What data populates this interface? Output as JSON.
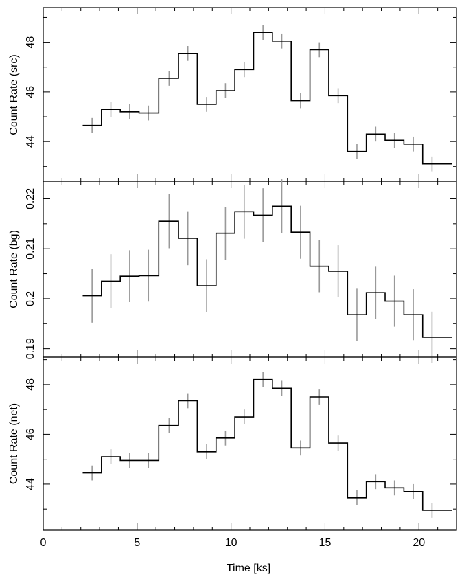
{
  "chart_data": [
    {
      "type": "line",
      "style": "step",
      "ylabel": "Count Rate (src)",
      "xlabel": "",
      "xlim": [
        0,
        22
      ],
      "ylim": [
        42.4,
        49.4
      ],
      "yticks": [
        44,
        46,
        48
      ],
      "ytick_labels": [
        "44",
        "46",
        "48"
      ],
      "x": [
        2.6,
        3.6,
        4.6,
        5.6,
        6.7,
        7.7,
        8.7,
        9.7,
        10.7,
        11.7,
        12.7,
        13.7,
        14.7,
        15.7,
        16.7,
        17.7,
        18.7,
        19.7,
        20.7,
        21.7
      ],
      "values": [
        44.65,
        45.3,
        45.2,
        45.15,
        46.55,
        47.55,
        45.5,
        46.05,
        46.9,
        48.4,
        48.05,
        45.65,
        47.7,
        45.85,
        43.6,
        44.3,
        44.05,
        43.9,
        43.1,
        43.1
      ],
      "yerr": [
        0.3,
        0.3,
        0.3,
        0.3,
        0.3,
        0.3,
        0.3,
        0.3,
        0.3,
        0.3,
        0.3,
        0.3,
        0.3,
        0.3,
        0.3,
        0.3,
        0.3,
        0.3,
        0.3,
        0.3
      ]
    },
    {
      "type": "line",
      "style": "step",
      "ylabel": "Count Rate (bg)",
      "xlabel": "",
      "xlim": [
        0,
        22
      ],
      "ylim": [
        0.1883,
        0.2235
      ],
      "yticks": [
        0.19,
        0.2,
        0.21,
        0.22
      ],
      "ytick_labels": [
        "0.19",
        "0.2",
        "0.21",
        "0.22"
      ],
      "x": [
        2.6,
        3.6,
        4.6,
        5.6,
        6.7,
        7.7,
        8.7,
        9.7,
        10.7,
        11.7,
        12.7,
        13.7,
        14.7,
        15.7,
        16.7,
        17.7,
        18.7,
        19.7,
        20.7,
        21.7
      ],
      "values": [
        0.2006,
        0.2035,
        0.2045,
        0.2046,
        0.2155,
        0.2121,
        0.2026,
        0.2131,
        0.2174,
        0.2167,
        0.2185,
        0.2133,
        0.2065,
        0.2055,
        0.1968,
        0.2012,
        0.1995,
        0.1968,
        0.1923,
        0.1923
      ],
      "yerr": [
        0.0054,
        0.0054,
        0.0052,
        0.0052,
        0.0054,
        0.0054,
        0.0053,
        0.0053,
        0.0054,
        0.0054,
        0.0054,
        0.0053,
        0.0052,
        0.0052,
        0.0052,
        0.0052,
        0.0051,
        0.0051,
        0.0051,
        0.0051
      ]
    },
    {
      "type": "line",
      "style": "step",
      "ylabel": "Count Rate (net)",
      "xlabel": "Time [ks]",
      "xlim": [
        0,
        22
      ],
      "ylim": [
        42.15,
        49.1
      ],
      "yticks": [
        44,
        46,
        48
      ],
      "ytick_labels": [
        "44",
        "46",
        "48"
      ],
      "xticks": [
        0,
        5,
        10,
        15,
        20
      ],
      "xtick_labels": [
        "0",
        "5",
        "10",
        "15",
        "20"
      ],
      "x": [
        2.6,
        3.6,
        4.6,
        5.6,
        6.7,
        7.7,
        8.7,
        9.7,
        10.7,
        11.7,
        12.7,
        13.7,
        14.7,
        15.7,
        16.7,
        17.7,
        18.7,
        19.7,
        20.7,
        21.7
      ],
      "values": [
        44.45,
        45.1,
        44.95,
        44.95,
        46.35,
        47.35,
        45.3,
        45.85,
        46.7,
        48.2,
        47.85,
        45.45,
        47.5,
        45.65,
        43.45,
        44.1,
        43.85,
        43.7,
        42.95,
        42.95
      ],
      "yerr": [
        0.3,
        0.3,
        0.3,
        0.3,
        0.3,
        0.3,
        0.3,
        0.3,
        0.3,
        0.3,
        0.3,
        0.3,
        0.3,
        0.3,
        0.3,
        0.3,
        0.3,
        0.3,
        0.3,
        0.3
      ]
    }
  ]
}
